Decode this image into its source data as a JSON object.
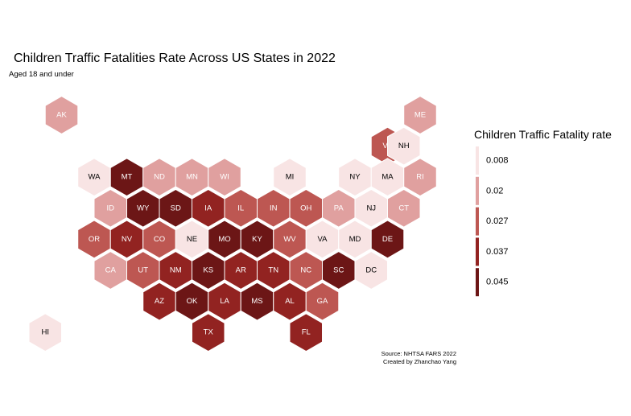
{
  "chart_data": {
    "type": "hexbin-map",
    "title": "Children Traffic Fatalities Rate Across US States in 2022",
    "subtitle": "Aged 18 and under",
    "caption": [
      "Source: NHTSA FARS 2022",
      "Created by Zhanchao Yang"
    ],
    "legend": {
      "title": "Children Traffic Fatality rate",
      "placement": "right",
      "bins": [
        {
          "label": "0.008",
          "color": "#f8e4e4"
        },
        {
          "label": "0.02",
          "color": "#e0a09f"
        },
        {
          "label": "0.027",
          "color": "#bd5752"
        },
        {
          "label": "0.037",
          "color": "#922321"
        },
        {
          "label": "0.045",
          "color": "#6c1616"
        }
      ]
    },
    "states": [
      {
        "abbr": "AK",
        "bin": 1
      },
      {
        "abbr": "ME",
        "bin": 1
      },
      {
        "abbr": "VT",
        "bin": 2
      },
      {
        "abbr": "NH",
        "bin": 0
      },
      {
        "abbr": "WA",
        "bin": 0
      },
      {
        "abbr": "MT",
        "bin": 4
      },
      {
        "abbr": "ND",
        "bin": 1
      },
      {
        "abbr": "MN",
        "bin": 1
      },
      {
        "abbr": "WI",
        "bin": 1
      },
      {
        "abbr": "MI",
        "bin": 0
      },
      {
        "abbr": "NY",
        "bin": 0
      },
      {
        "abbr": "MA",
        "bin": 0
      },
      {
        "abbr": "RI",
        "bin": 1
      },
      {
        "abbr": "ID",
        "bin": 1
      },
      {
        "abbr": "WY",
        "bin": 4
      },
      {
        "abbr": "SD",
        "bin": 4
      },
      {
        "abbr": "IA",
        "bin": 3
      },
      {
        "abbr": "IL",
        "bin": 2
      },
      {
        "abbr": "IN",
        "bin": 2
      },
      {
        "abbr": "OH",
        "bin": 2
      },
      {
        "abbr": "PA",
        "bin": 1
      },
      {
        "abbr": "NJ",
        "bin": 0
      },
      {
        "abbr": "CT",
        "bin": 1
      },
      {
        "abbr": "OR",
        "bin": 2
      },
      {
        "abbr": "NV",
        "bin": 3
      },
      {
        "abbr": "CO",
        "bin": 2
      },
      {
        "abbr": "NE",
        "bin": 0
      },
      {
        "abbr": "MO",
        "bin": 4
      },
      {
        "abbr": "KY",
        "bin": 4
      },
      {
        "abbr": "WV",
        "bin": 2
      },
      {
        "abbr": "VA",
        "bin": 0
      },
      {
        "abbr": "MD",
        "bin": 0
      },
      {
        "abbr": "DE",
        "bin": 4
      },
      {
        "abbr": "CA",
        "bin": 1
      },
      {
        "abbr": "UT",
        "bin": 2
      },
      {
        "abbr": "NM",
        "bin": 3
      },
      {
        "abbr": "KS",
        "bin": 4
      },
      {
        "abbr": "AR",
        "bin": 3
      },
      {
        "abbr": "TN",
        "bin": 3
      },
      {
        "abbr": "NC",
        "bin": 2
      },
      {
        "abbr": "SC",
        "bin": 4
      },
      {
        "abbr": "DC",
        "bin": 0
      },
      {
        "abbr": "AZ",
        "bin": 3
      },
      {
        "abbr": "OK",
        "bin": 4
      },
      {
        "abbr": "LA",
        "bin": 3
      },
      {
        "abbr": "MS",
        "bin": 4
      },
      {
        "abbr": "AL",
        "bin": 3
      },
      {
        "abbr": "GA",
        "bin": 2
      },
      {
        "abbr": "HI",
        "bin": 0
      },
      {
        "abbr": "TX",
        "bin": 3
      },
      {
        "abbr": "FL",
        "bin": 3
      }
    ]
  }
}
